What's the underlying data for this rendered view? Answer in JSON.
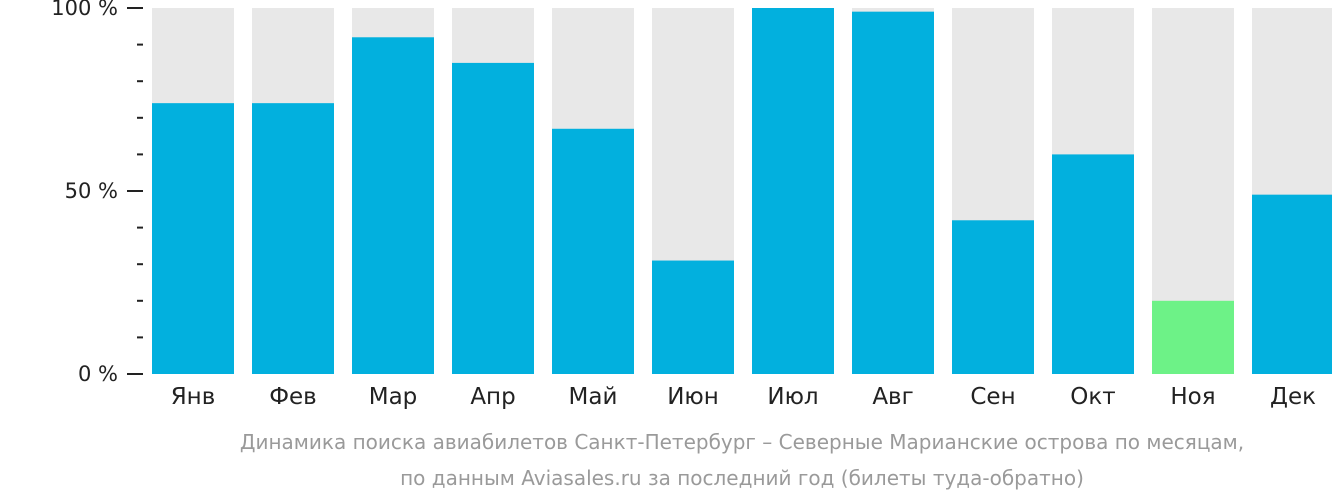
{
  "chart_data": {
    "type": "bar",
    "categories": [
      "Янв",
      "Фев",
      "Мар",
      "Апр",
      "Май",
      "Июн",
      "Июл",
      "Авг",
      "Сен",
      "Окт",
      "Ноя",
      "Дек"
    ],
    "values": [
      74,
      74,
      92,
      85,
      67,
      31,
      100,
      99,
      42,
      60,
      20,
      49
    ],
    "max_value": 100,
    "ylim": [
      0,
      100
    ],
    "yticks": [
      0,
      50,
      100
    ],
    "ytick_labels": [
      "0 %",
      "50 %",
      "100 %"
    ],
    "minor_ticks_per_major": 5,
    "highlight_index": 10,
    "grid": false,
    "colors": {
      "bar": "#02B0DE",
      "bar_highlight": "#6DF287",
      "bar_background": "#E8E8E8",
      "axis": "#222222"
    }
  },
  "caption": {
    "line1": "Динамика поиска авиабилетов Санкт-Петербург – Северные Марианские острова по месяцам,",
    "line2": "по данным Aviasales.ru за последний год (билеты туда-обратно)"
  }
}
